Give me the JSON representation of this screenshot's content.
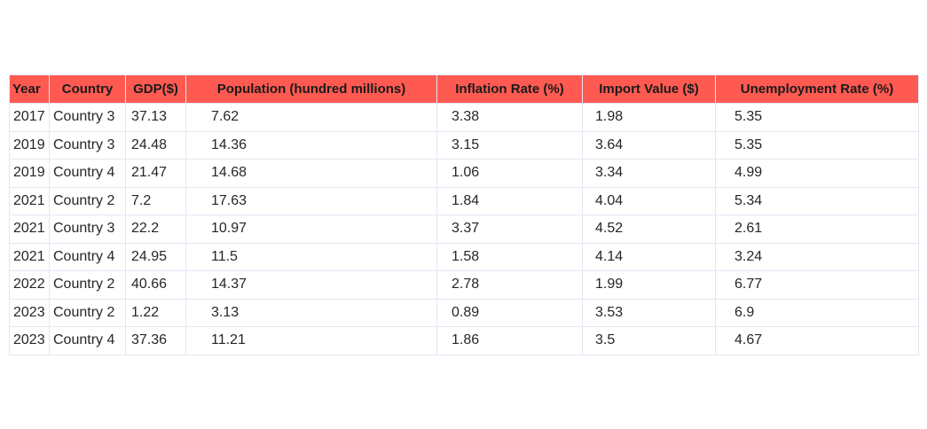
{
  "chart_data": {
    "type": "table",
    "colors": {
      "header_bg": "#ff5a52",
      "header_text": "#1a1a1a",
      "cell_bg": "#ffffff",
      "grid": "#e6e6f5"
    },
    "columns": [
      "Year",
      "Country",
      "GDP($)",
      "Population (hundred millions)",
      "Inflation Rate (%)",
      "Import Value ($)",
      "Unemployment Rate (%)"
    ],
    "rows": [
      [
        "2017",
        "Country 3",
        "37.13",
        "7.62",
        "3.38",
        "1.98",
        "5.35"
      ],
      [
        "2019",
        "Country 3",
        "24.48",
        "14.36",
        "3.15",
        "3.64",
        "5.35"
      ],
      [
        "2019",
        "Country 4",
        "21.47",
        "14.68",
        "1.06",
        "3.34",
        "4.99"
      ],
      [
        "2021",
        "Country 2",
        "7.2",
        "17.63",
        "1.84",
        "4.04",
        "5.34"
      ],
      [
        "2021",
        "Country 3",
        "22.2",
        "10.97",
        "3.37",
        "4.52",
        "2.61"
      ],
      [
        "2021",
        "Country 4",
        "24.95",
        "11.5",
        "1.58",
        "4.14",
        "3.24"
      ],
      [
        "2022",
        "Country 2",
        "40.66",
        "14.37",
        "2.78",
        "1.99",
        "6.77"
      ],
      [
        "2023",
        "Country 2",
        "1.22",
        "3.13",
        "0.89",
        "3.53",
        "6.9"
      ],
      [
        "2023",
        "Country 4",
        "37.36",
        "11.21",
        "1.86",
        "3.5",
        "4.67"
      ]
    ]
  }
}
